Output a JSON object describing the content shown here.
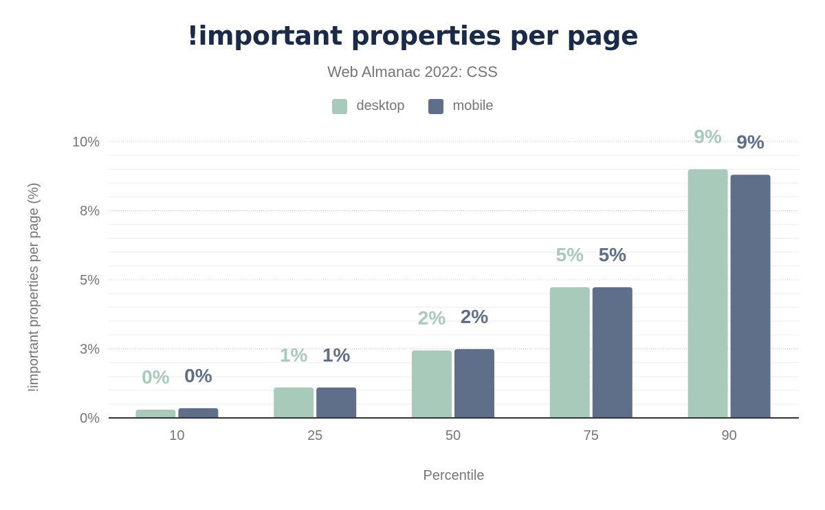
{
  "chart_data": {
    "type": "bar",
    "title": "!important properties per page",
    "subtitle": "Web Almanac 2022: CSS",
    "xlabel": "Percentile",
    "ylabel": "!important properties per page (%)",
    "categories": [
      "10",
      "25",
      "50",
      "75",
      "90"
    ],
    "series": [
      {
        "name": "desktop",
        "color": "#a8cabb",
        "values": [
          0.3,
          1.1,
          2.44,
          4.73,
          9.0
        ],
        "labels": [
          "0%",
          "1%",
          "2%",
          "5%",
          "9%"
        ]
      },
      {
        "name": "mobile",
        "color": "#5f6f8a",
        "values": [
          0.35,
          1.1,
          2.49,
          4.73,
          8.8
        ],
        "labels": [
          "0%",
          "1%",
          "2%",
          "5%",
          "9%"
        ]
      }
    ],
    "ylim": [
      0,
      10
    ],
    "yticks": [
      0,
      2.5,
      5,
      7.5,
      10
    ],
    "ytick_labels": [
      "0%",
      "3%",
      "5%",
      "8%",
      "10%"
    ],
    "grid": true,
    "legend": "top-center"
  }
}
